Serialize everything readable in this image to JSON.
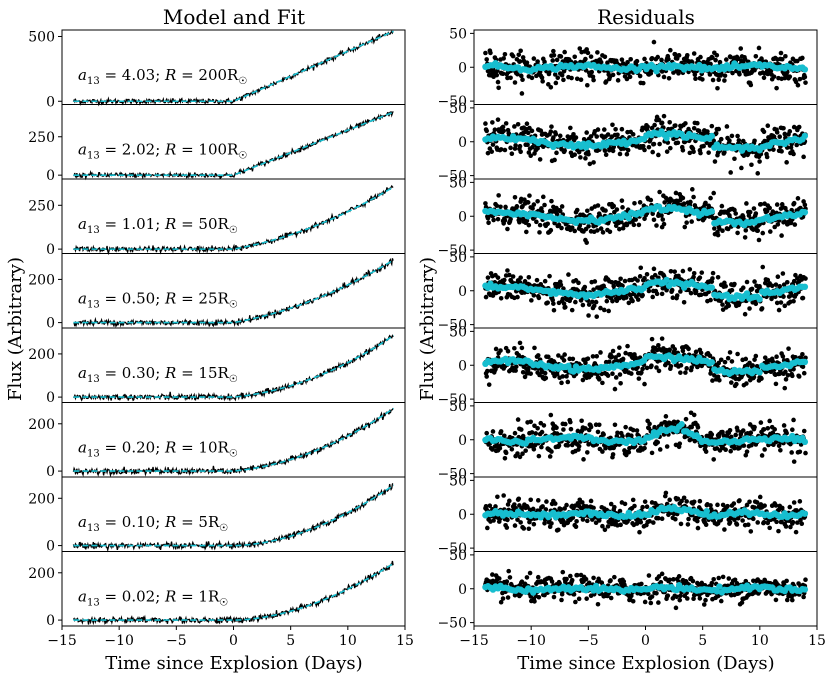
{
  "chart_data": [
    {
      "type": "line",
      "title": "Model and Fit",
      "xlabel": "Time since Explosion (Days)",
      "ylabel": "Flux (Arbitrary)",
      "xlim": [
        -15,
        15
      ],
      "xticks": [
        -15,
        -10,
        -5,
        0,
        5,
        10,
        15
      ],
      "x_range": [
        -14,
        14
      ],
      "series_style": {
        "data": "#000000",
        "fit": "#17becf"
      },
      "panels": [
        {
          "label_lhs": "a",
          "label_sub": "13",
          "label_val": " = 4.03;",
          "label_r": "R",
          "label_rval": " = 200R",
          "ylim": [
            -25,
            550
          ],
          "yticks": [
            0,
            500
          ],
          "peak": 540,
          "shape": "linear"
        },
        {
          "label_lhs": "a",
          "label_sub": "13",
          "label_val": " = 2.02;",
          "label_r": "R",
          "label_rval": " = 100R",
          "ylim": [
            -25,
            460
          ],
          "yticks": [
            0,
            250
          ],
          "peak": 410,
          "shape": "linear"
        },
        {
          "label_lhs": "a",
          "label_sub": "13",
          "label_val": " = 1.01;",
          "label_r": "R",
          "label_rval": " = 50R",
          "ylim": [
            -25,
            400
          ],
          "yticks": [
            0,
            250
          ],
          "peak": 355,
          "shape": "mild"
        },
        {
          "label_lhs": "a",
          "label_sub": "13",
          "label_val": " = 0.50;",
          "label_r": "R",
          "label_rval": " = 25R",
          "ylim": [
            -25,
            320
          ],
          "yticks": [
            0,
            200
          ],
          "peak": 290,
          "shape": "mild"
        },
        {
          "label_lhs": "a",
          "label_sub": "13",
          "label_val": " = 0.30;",
          "label_r": "R",
          "label_rval": " = 15R",
          "ylim": [
            -25,
            320
          ],
          "yticks": [
            0,
            200
          ],
          "peak": 285,
          "shape": "curve"
        },
        {
          "label_lhs": "a",
          "label_sub": "13",
          "label_val": " = 0.20;",
          "label_r": "R",
          "label_rval": " = 10R",
          "ylim": [
            -25,
            290
          ],
          "yticks": [
            0,
            200
          ],
          "peak": 265,
          "shape": "curve"
        },
        {
          "label_lhs": "a",
          "label_sub": "13",
          "label_val": " = 0.10;",
          "label_r": "R",
          "label_rval": " = 5R",
          "ylim": [
            -25,
            290
          ],
          "yticks": [
            0,
            200
          ],
          "peak": 255,
          "shape": "quad"
        },
        {
          "label_lhs": "a",
          "label_sub": "13",
          "label_val": " = 0.02;",
          "label_r": "R",
          "label_rval": " = 1R",
          "ylim": [
            -25,
            290
          ],
          "yticks": [
            0,
            200
          ],
          "peak": 240,
          "shape": "quad"
        }
      ]
    },
    {
      "type": "scatter",
      "title": "Residuals",
      "xlabel": "Time since Explosion (Days)",
      "ylabel": "Flux (Arbitrary)",
      "xlim": [
        -15,
        15
      ],
      "xticks": [
        -15,
        -10,
        -5,
        0,
        5,
        10,
        15
      ],
      "x_range": [
        -14,
        14
      ],
      "ylim": [
        -55,
        55
      ],
      "yticks": [
        -50,
        0,
        50
      ],
      "series_style": {
        "points": "#000000",
        "binned": "#17becf"
      },
      "panels": [
        {
          "scatter": 11,
          "trend": "flat"
        },
        {
          "scatter": 12,
          "trend": "wave"
        },
        {
          "scatter": 11,
          "trend": "wave"
        },
        {
          "scatter": 11,
          "trend": "wave"
        },
        {
          "scatter": 11,
          "trend": "wave"
        },
        {
          "scatter": 11,
          "trend": "bump"
        },
        {
          "scatter": 10,
          "trend": "bump_small"
        },
        {
          "scatter": 9,
          "trend": "flat"
        }
      ]
    }
  ],
  "sun_symbol": "☉"
}
